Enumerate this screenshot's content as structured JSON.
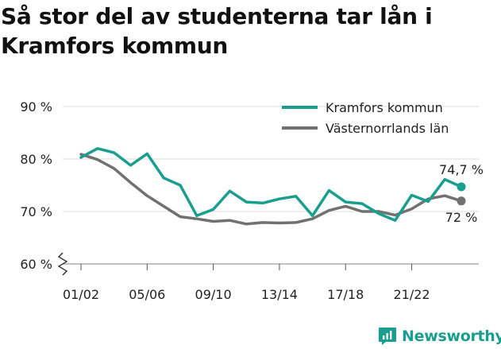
{
  "title": "Så stor del av studenterna tar lån i Kramfors kommun",
  "brand": {
    "name": "Newsworthy"
  },
  "chart_data": {
    "type": "line",
    "title": "Så stor del av studenterna tar lån i Kramfors kommun",
    "xlabel": "",
    "ylabel": "",
    "ylim": [
      60,
      90
    ],
    "yticks": [
      60,
      70,
      80,
      90
    ],
    "ytick_labels": [
      "60 %",
      "70 %",
      "80 %",
      "90 %"
    ],
    "y_axis_break": true,
    "grid": true,
    "legend_position": "top-right",
    "categories": [
      "01/02",
      "02/03",
      "03/04",
      "04/05",
      "05/06",
      "06/07",
      "07/08",
      "08/09",
      "09/10",
      "10/11",
      "11/12",
      "12/13",
      "13/14",
      "14/15",
      "15/16",
      "16/17",
      "17/18",
      "18/19",
      "19/20",
      "20/21",
      "21/22",
      "22/23",
      "23/24",
      "24/25"
    ],
    "xtick_labels": [
      "01/02",
      "05/06",
      "09/10",
      "13/14",
      "17/18",
      "21/22"
    ],
    "series": [
      {
        "name": "Kramfors kommun",
        "color": "#1a9e8f",
        "values": [
          80.3,
          82.0,
          81.2,
          78.8,
          81.0,
          76.4,
          75.0,
          69.2,
          70.4,
          73.9,
          71.8,
          71.6,
          72.4,
          72.9,
          69.2,
          74.0,
          71.8,
          71.5,
          69.6,
          68.3,
          73.1,
          71.9,
          76.1,
          74.7
        ],
        "end_label": "74,7 %"
      },
      {
        "name": "Västernorrlands län",
        "color": "#717171",
        "values": [
          80.9,
          79.9,
          78.2,
          75.5,
          73.0,
          71.0,
          69.0,
          68.6,
          68.1,
          68.3,
          67.6,
          67.9,
          67.8,
          67.9,
          68.6,
          70.2,
          71.0,
          70.0,
          70.0,
          69.3,
          70.5,
          72.4,
          73.0,
          72.0
        ],
        "end_label": "72 %"
      }
    ]
  }
}
